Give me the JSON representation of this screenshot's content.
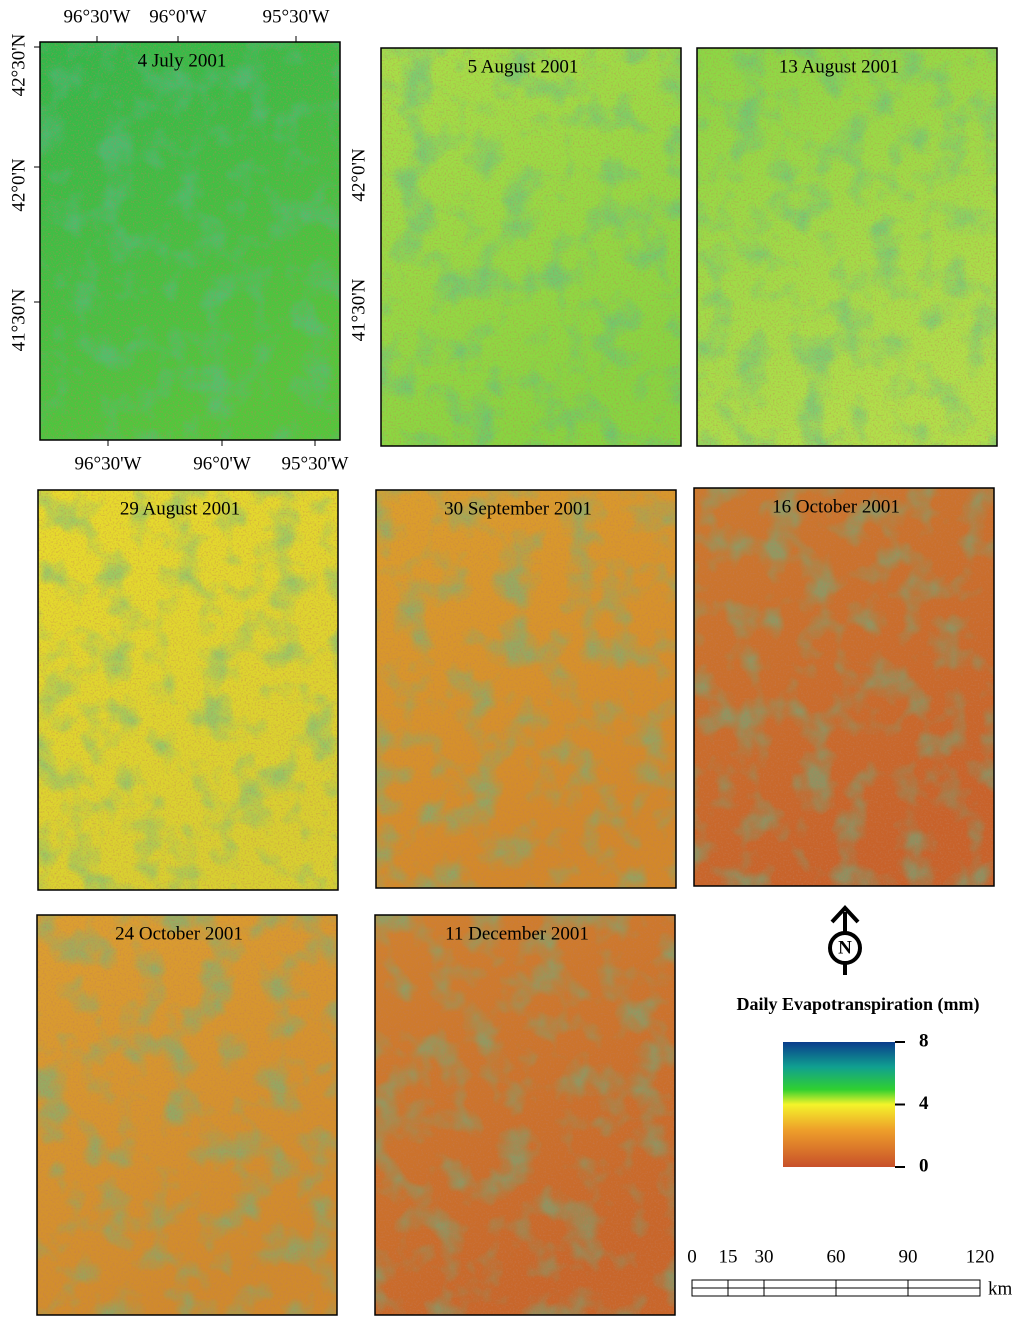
{
  "panels": [
    {
      "title": "4 July 2001"
    },
    {
      "title": "5 August 2001"
    },
    {
      "title": "13 August 2001"
    },
    {
      "title": "29 August 2001"
    },
    {
      "title": "30 September 2001"
    },
    {
      "title": "16 October 2001"
    },
    {
      "title": "24 October 2001"
    },
    {
      "title": "11 December 2001"
    }
  ],
  "axes": {
    "top_lon": [
      "96°30'W",
      "96°0'W",
      "95°30'W"
    ],
    "bottom_lon": [
      "96°30'W",
      "96°0'W",
      "95°30'W"
    ],
    "left_lat": [
      "42°30'N",
      "42°0'N",
      "41°30'N"
    ],
    "second_lat": [
      "42°0'N",
      "41°30'N"
    ]
  },
  "north_label": "N",
  "legend": {
    "title": "Daily Evapotranspiration (mm)",
    "lim": [
      0,
      8
    ],
    "ticks": [
      8,
      4,
      0
    ]
  },
  "scale_bar": {
    "lim": [
      0,
      120
    ],
    "ticks": [
      0,
      15,
      30,
      60,
      90,
      120
    ],
    "unit": "km"
  }
}
